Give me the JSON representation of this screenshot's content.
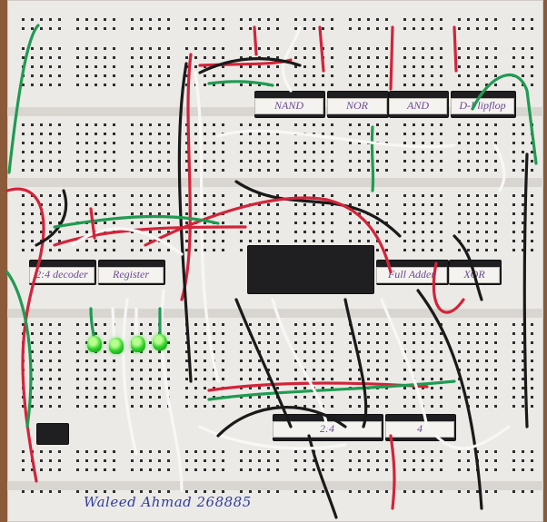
{
  "labels": {
    "nand": "NAND",
    "nor": "NOR",
    "and": "AND",
    "d_flipflop": "D-Flipflop",
    "decoder": "2:4 decoder",
    "register": "Register",
    "full_adder": "Full Adder",
    "xor": "XOR",
    "bottom_left": "2:4",
    "bottom_right": "4"
  },
  "leds": {
    "count": 4,
    "color": "#2dd12a"
  },
  "signature": {
    "text": "Waleed Ahmad 268885"
  },
  "colors": {
    "board": "#eceae6",
    "wire_red": "#d2243a",
    "wire_black": "#1a1a1a",
    "wire_white": "#f7f7f5",
    "wire_green": "#1f9b52",
    "label_ink": "#6b4a8f"
  }
}
